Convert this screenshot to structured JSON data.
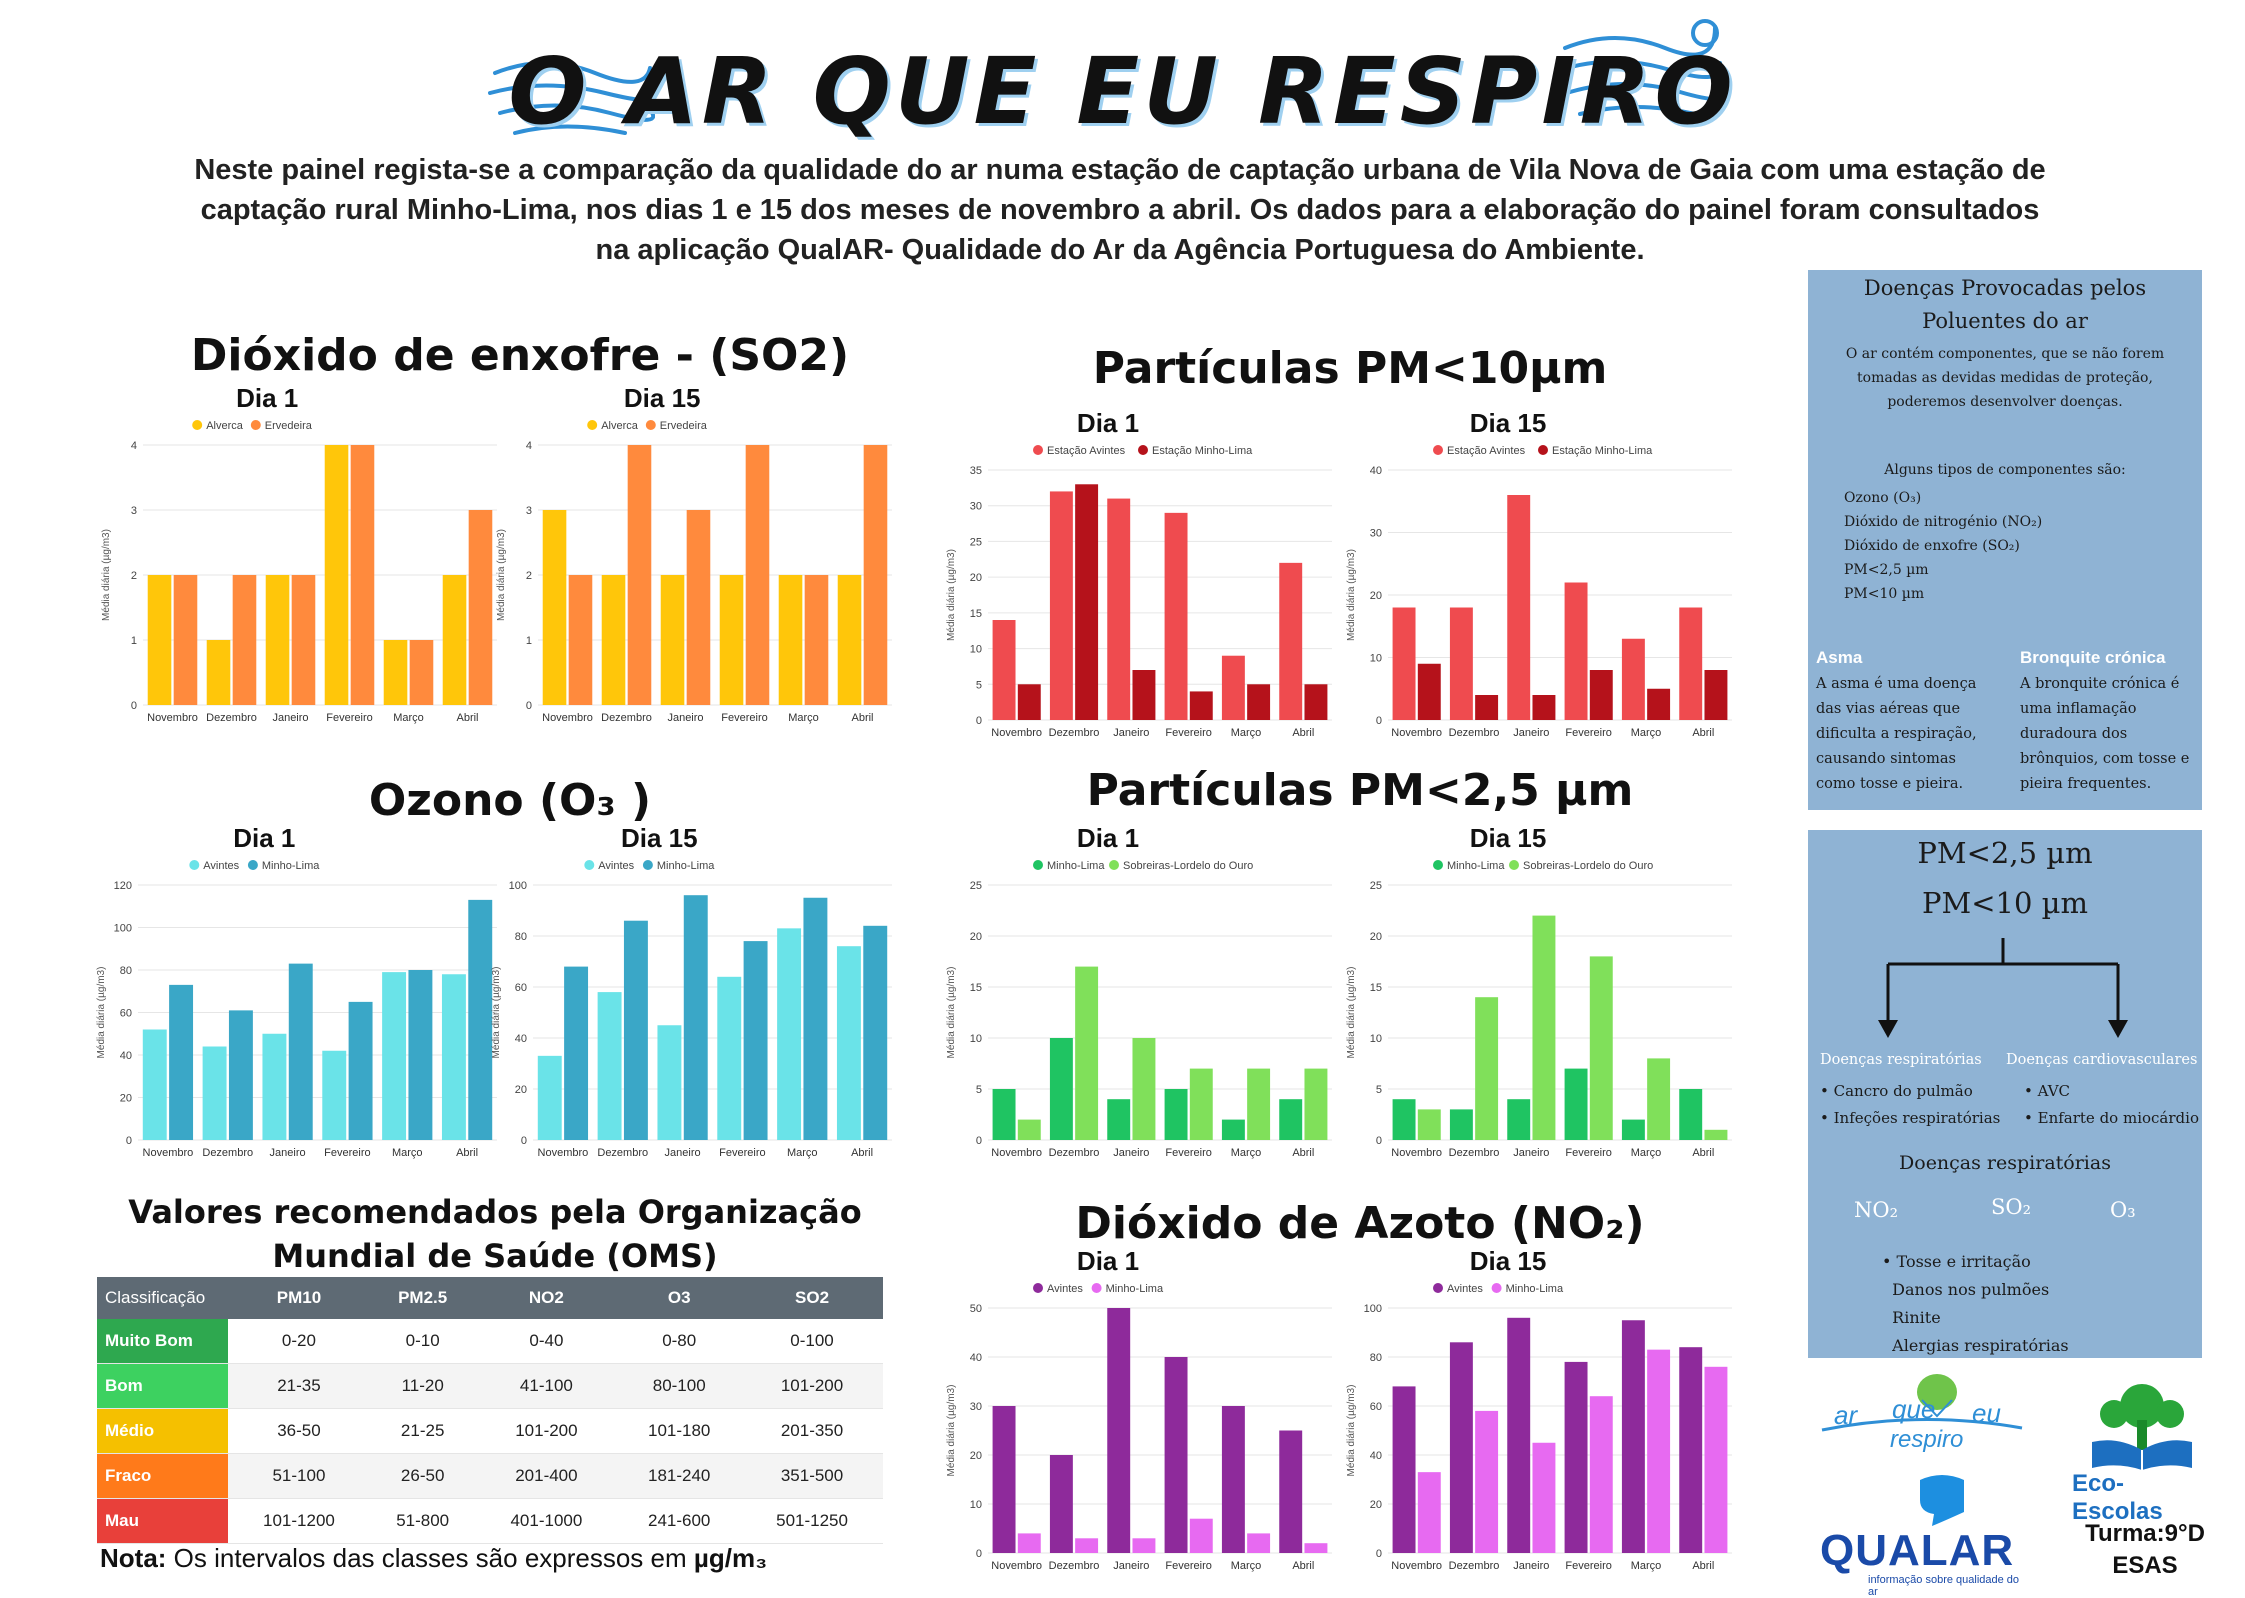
{
  "header": {
    "title": "O AR QUE EU RESPIRO",
    "intro": "Neste painel regista-se a comparação da qualidade do ar numa estação de captação urbana de Vila Nova de Gaia com uma estação de captação rural Minho-Lima, nos dias 1 e 15 dos meses de novembro a abril. Os dados para a elaboração do painel foram consultados na aplicação QualAR- Qualidade do Ar da Agência Portuguesa do Ambiente."
  },
  "colors": {
    "so2_a": "#ffc60a",
    "so2_b": "#ff8a3d",
    "pm10_a": "#ef4b4f",
    "pm10_b": "#b5121b",
    "o3_a": "#6ae3e8",
    "o3_b": "#3aa7c7",
    "pm25_a": "#1fc462",
    "pm25_b": "#80e05a",
    "no2_a": "#8e2a9b",
    "no2_b": "#e76af1",
    "panel_bg": "#8fb3d4"
  },
  "sections": {
    "so2": "Dióxido de enxofre - (SO2)",
    "pm10": "Partículas PM<10µm",
    "o3": "Ozono (O₃ )",
    "pm25": "Partículas PM<2,5 µm",
    "no2": "Dióxido de Azoto (NO₂)"
  },
  "chart_data": [
    {
      "id": "so2_d1",
      "type": "bar",
      "title": "Dia 1",
      "ylabel": "Média diária (µg/m3)",
      "ylim": [
        0,
        4
      ],
      "yticks": [
        0,
        1,
        2,
        3,
        4
      ],
      "categories": [
        "Novembro",
        "Dezembro",
        "Janeiro",
        "Fevereiro",
        "Março",
        "Abril"
      ],
      "series": [
        {
          "name": "Alverca",
          "values": [
            2,
            1,
            2,
            4,
            1,
            2
          ]
        },
        {
          "name": "Ervedeira",
          "values": [
            2,
            2,
            2,
            4,
            1,
            3
          ]
        }
      ]
    },
    {
      "id": "so2_d15",
      "type": "bar",
      "title": "Dia 15",
      "ylabel": "Média diária (µg/m3)",
      "ylim": [
        0,
        4
      ],
      "yticks": [
        0,
        1,
        2,
        3,
        4
      ],
      "categories": [
        "Novembro",
        "Dezembro",
        "Janeiro",
        "Fevereiro",
        "Março",
        "Abril"
      ],
      "series": [
        {
          "name": "Alverca",
          "values": [
            3,
            2,
            2,
            2,
            2,
            2
          ]
        },
        {
          "name": "Ervedeira",
          "values": [
            2,
            4,
            3,
            4,
            2,
            4
          ]
        }
      ]
    },
    {
      "id": "pm10_d1",
      "type": "bar",
      "title": "Dia 1",
      "ylabel": "Média diária (µg/m3)",
      "ylim": [
        0,
        35
      ],
      "yticks": [
        0,
        5,
        10,
        15,
        20,
        25,
        30,
        35
      ],
      "categories": [
        "Novembro",
        "Dezembro",
        "Janeiro",
        "Fevereiro",
        "Março",
        "Abril"
      ],
      "series": [
        {
          "name": "Estação Avintes",
          "values": [
            14,
            32,
            31,
            29,
            9,
            22
          ]
        },
        {
          "name": "Estação Minho-Lima",
          "values": [
            5,
            33,
            7,
            4,
            5,
            5
          ]
        }
      ]
    },
    {
      "id": "pm10_d15",
      "type": "bar",
      "title": "Dia 15",
      "ylabel": "Média diária (µg/m3)",
      "ylim": [
        0,
        40
      ],
      "yticks": [
        0,
        10,
        20,
        30,
        40
      ],
      "categories": [
        "Novembro",
        "Dezembro",
        "Janeiro",
        "Fevereiro",
        "Março",
        "Abril"
      ],
      "series": [
        {
          "name": "Estação Avintes",
          "values": [
            18,
            18,
            36,
            22,
            13,
            18
          ]
        },
        {
          "name": "Estação Minho-Lima",
          "values": [
            9,
            4,
            4,
            8,
            5,
            8
          ]
        }
      ]
    },
    {
      "id": "o3_d1",
      "type": "bar",
      "title": "Dia 1",
      "ylabel": "Média diária (µg/m3)",
      "ylim": [
        0,
        120
      ],
      "yticks": [
        0,
        20,
        40,
        60,
        80,
        100,
        120
      ],
      "categories": [
        "Novembro",
        "Dezembro",
        "Janeiro",
        "Fevereiro",
        "Março",
        "Abril"
      ],
      "series": [
        {
          "name": "Avintes",
          "values": [
            52,
            44,
            50,
            42,
            79,
            78
          ]
        },
        {
          "name": "Minho-Lima",
          "values": [
            73,
            61,
            83,
            65,
            80,
            113
          ]
        }
      ]
    },
    {
      "id": "o3_d15",
      "type": "bar",
      "title": "Dia 15",
      "ylabel": "Média diária (µg/m3)",
      "ylim": [
        0,
        100
      ],
      "yticks": [
        0,
        20,
        40,
        60,
        80,
        100
      ],
      "categories": [
        "Novembro",
        "Dezembro",
        "Janeiro",
        "Fevereiro",
        "Março",
        "Abril"
      ],
      "series": [
        {
          "name": "Avintes",
          "values": [
            33,
            58,
            45,
            64,
            83,
            76
          ]
        },
        {
          "name": "Minho-Lima",
          "values": [
            68,
            86,
            96,
            78,
            95,
            84
          ]
        }
      ]
    },
    {
      "id": "pm25_d1",
      "type": "bar",
      "title": "Dia 1",
      "ylabel": "Média diária (µg/m3)",
      "ylim": [
        0,
        25
      ],
      "yticks": [
        0,
        5,
        10,
        15,
        20,
        25
      ],
      "categories": [
        "Novembro",
        "Dezembro",
        "Janeiro",
        "Fevereiro",
        "Março",
        "Abril"
      ],
      "series": [
        {
          "name": "Minho-Lima",
          "values": [
            5,
            10,
            4,
            5,
            2,
            4
          ]
        },
        {
          "name": "Sobreiras-Lordelo do Ouro",
          "values": [
            2,
            17,
            10,
            7,
            7,
            7
          ]
        }
      ]
    },
    {
      "id": "pm25_d15",
      "type": "bar",
      "title": "Dia 15",
      "ylabel": "Média diária (µg/m3)",
      "ylim": [
        0,
        25
      ],
      "yticks": [
        0,
        5,
        10,
        15,
        20,
        25
      ],
      "categories": [
        "Novembro",
        "Dezembro",
        "Janeiro",
        "Fevereiro",
        "Março",
        "Abril"
      ],
      "series": [
        {
          "name": "Minho-Lima",
          "values": [
            4,
            3,
            4,
            7,
            2,
            5
          ]
        },
        {
          "name": "Sobreiras-Lordelo do Ouro",
          "values": [
            3,
            14,
            22,
            18,
            8,
            1
          ]
        }
      ]
    },
    {
      "id": "no2_d1",
      "type": "bar",
      "title": "Dia 1",
      "ylabel": "Média diária (µg/m3)",
      "ylim": [
        0,
        50
      ],
      "yticks": [
        0,
        10,
        20,
        30,
        40,
        50
      ],
      "categories": [
        "Novembro",
        "Dezembro",
        "Janeiro",
        "Fevereiro",
        "Março",
        "Abril"
      ],
      "series": [
        {
          "name": "Avintes",
          "values": [
            30,
            20,
            50,
            40,
            30,
            25
          ]
        },
        {
          "name": "Minho-Lima",
          "values": [
            4,
            3,
            3,
            7,
            4,
            2
          ]
        }
      ]
    },
    {
      "id": "no2_d15",
      "type": "bar",
      "title": "Dia 15",
      "ylabel": "Média diária (µg/m3)",
      "ylim": [
        0,
        100
      ],
      "yticks": [
        0,
        20,
        40,
        60,
        80,
        100
      ],
      "categories": [
        "Novembro",
        "Dezembro",
        "Janeiro",
        "Fevereiro",
        "Março",
        "Abril"
      ],
      "series": [
        {
          "name": "Avintes",
          "values": [
            68,
            86,
            96,
            78,
            95,
            84
          ]
        },
        {
          "name": "Minho-Lima",
          "values": [
            33,
            58,
            45,
            64,
            83,
            76
          ]
        }
      ]
    }
  ],
  "oms": {
    "title": "Valores recomendados pela Organização Mundial de Saúde (OMS)",
    "headers": [
      "Classificação",
      "PM10",
      "PM2.5",
      "NO2",
      "O3",
      "SO2"
    ],
    "rows": [
      {
        "label": "Muito Bom",
        "color": "#2ea84f",
        "values": [
          "0-20",
          "0-10",
          "0-40",
          "0-80",
          "0-100"
        ]
      },
      {
        "label": "Bom",
        "color": "#3dd160",
        "values": [
          "21-35",
          "11-20",
          "41-100",
          "80-100",
          "101-200"
        ]
      },
      {
        "label": "Médio",
        "color": "#f5c000",
        "values": [
          "36-50",
          "21-25",
          "101-200",
          "101-180",
          "201-350"
        ]
      },
      {
        "label": "Fraco",
        "color": "#ff7a1a",
        "values": [
          "51-100",
          "26-50",
          "201-400",
          "181-240",
          "351-500"
        ]
      },
      {
        "label": "Mau",
        "color": "#e8403a",
        "values": [
          "101-1200",
          "51-800",
          "401-1000",
          "241-600",
          "501-1250"
        ]
      }
    ],
    "nota_label": "Nota:",
    "nota_text": " Os intervalos das classes são expressos em ",
    "nota_unit": "µg/m₃"
  },
  "panel1": {
    "title": "Doenças Provocadas pelos Poluentes do ar",
    "intro": "O ar contém componentes, que se não forem tomadas as devidas medidas de proteção, poderemos desenvolver doenças.",
    "list_title": "Alguns tipos de componentes são:",
    "list": [
      "Ozono (O₃)",
      "Dióxido de nitrogénio (NO₂)",
      "Dióxido de enxofre (SO₂)",
      "PM<2,5 µm",
      "PM<10 µm"
    ],
    "asma_title": "Asma",
    "asma_text": "A asma é uma doença das vias aéreas que dificulta a respiração, causando sintomas como tosse e pieira.",
    "bronq_title": "Bronquite crónica",
    "bronq_text": "A bronquite crónica é uma inflamação duradoura dos brônquios, com tosse e pieira frequentes."
  },
  "panel2": {
    "pm25": "PM<2,5 µm",
    "pm10": "PM<10 µm",
    "resp_title": "Doenças respiratórias",
    "resp_items": [
      "Cancro do pulmão",
      "Infeções respiratórias"
    ],
    "card_title": "Doenças cardiovasculares",
    "card_items": [
      "AVC",
      "Enfarte do miocárdio"
    ],
    "resp2_title": "Doenças respiratórias",
    "gases": [
      "NO₂",
      "SO₂",
      "O₃"
    ],
    "resp2_items": [
      "Tosse e irritação",
      "Danos nos pulmões",
      "Rinite",
      "Alergias respiratórias"
    ]
  },
  "logos": {
    "ar_line1a": "ar",
    "ar_line1b": "que",
    "ar_line1c": "eu",
    "ar_line2": "respiro",
    "qualar": "QUALAR",
    "qualar_sub": "informação sobre qualidade do ar",
    "eco": "Eco-Escolas",
    "turma": "Turma:9°D",
    "escola": "ESAS"
  }
}
